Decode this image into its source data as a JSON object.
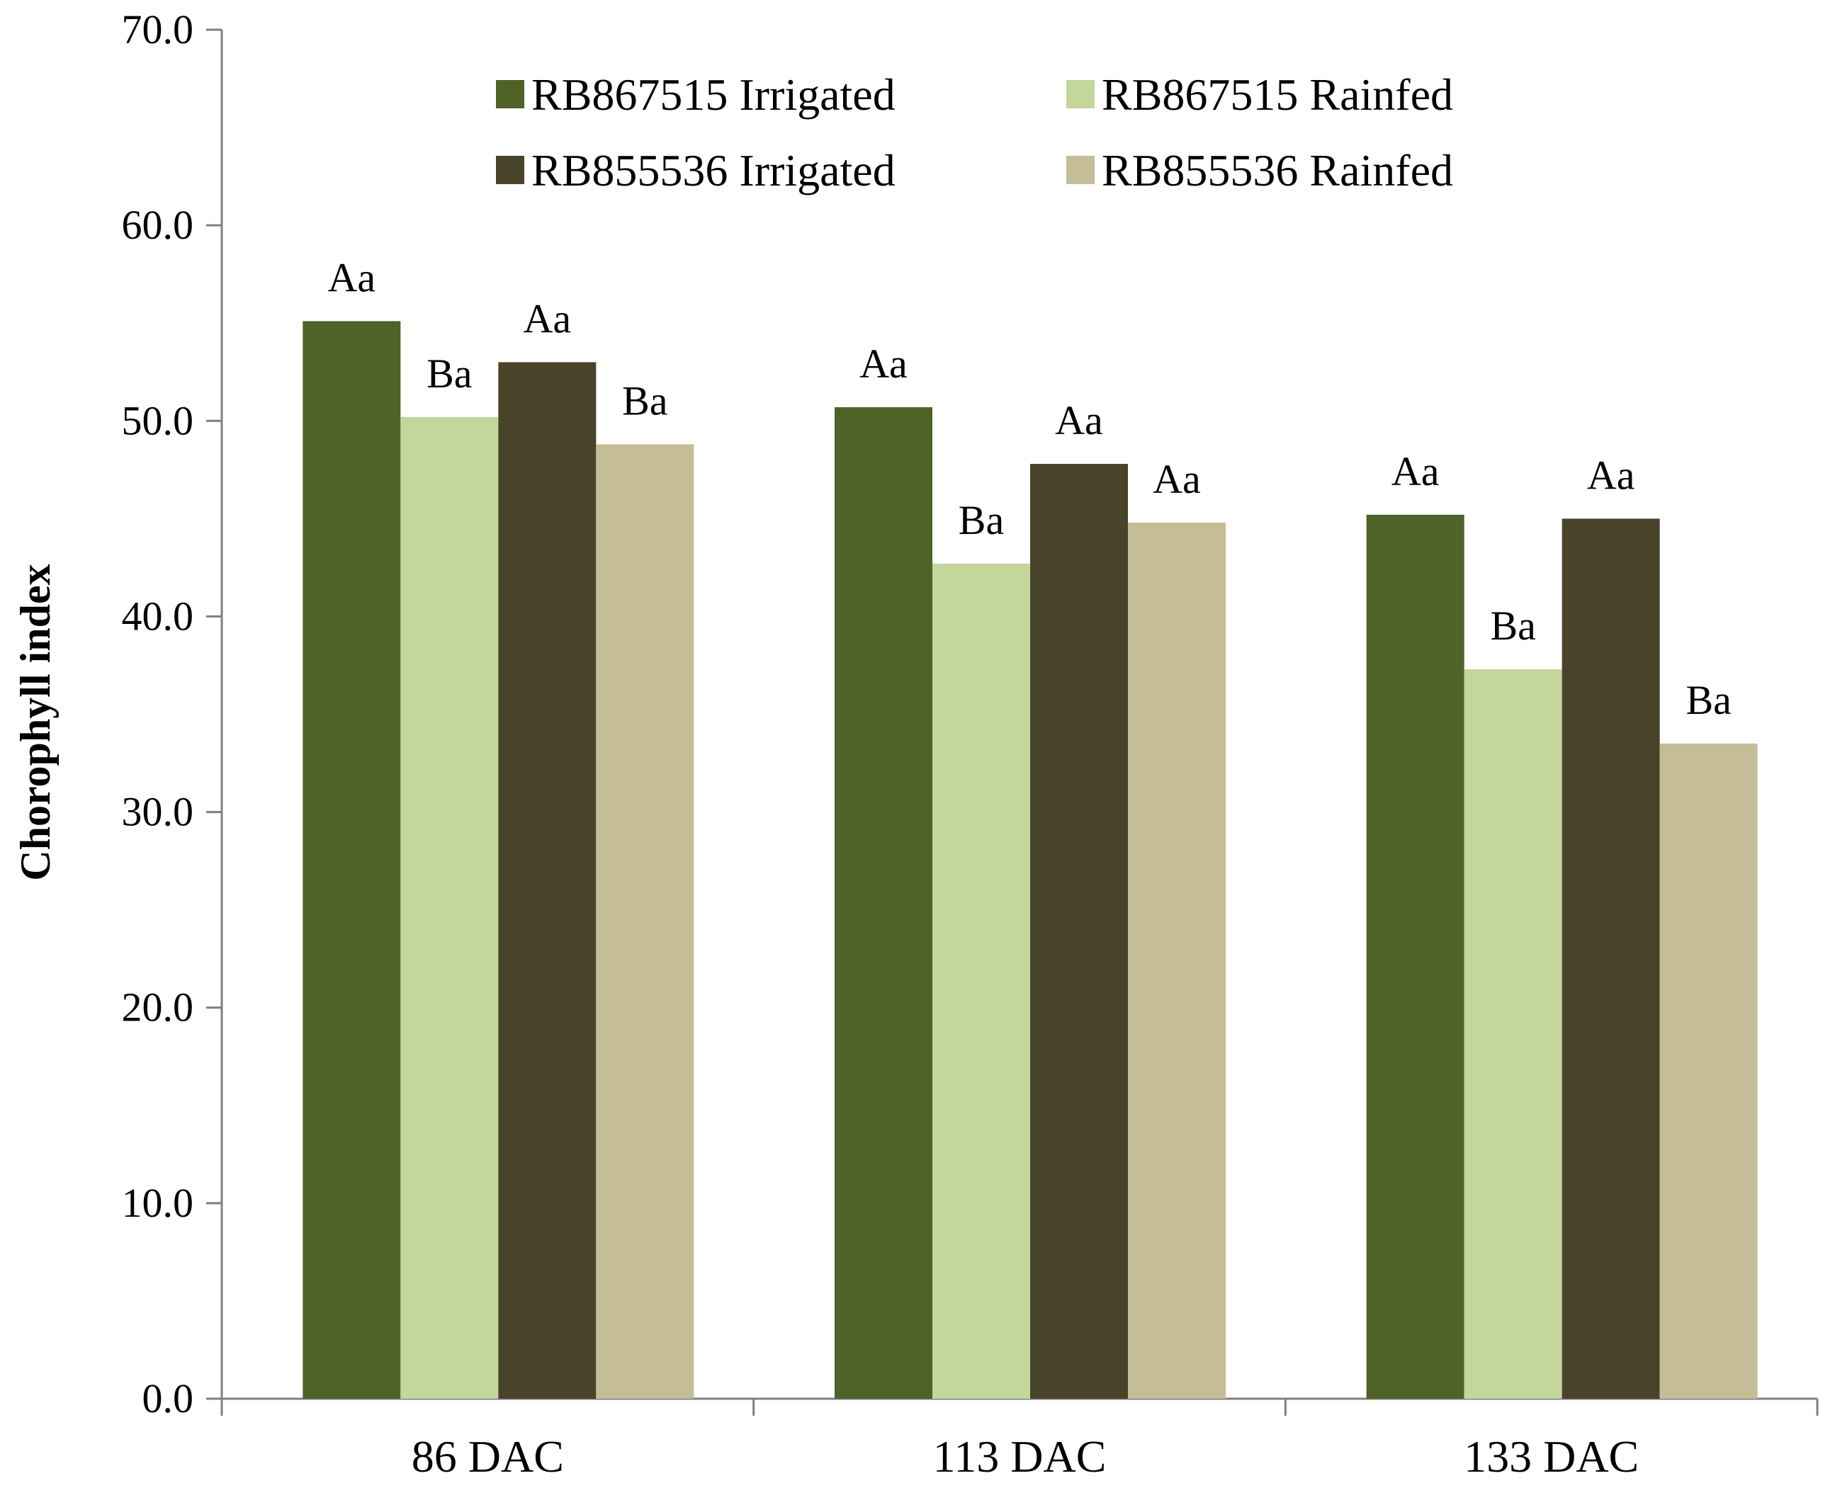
{
  "chart_data": {
    "type": "bar",
    "title": "",
    "xlabel": "",
    "ylabel": "Chorophyll  index",
    "ylim": [
      0,
      70
    ],
    "y_ticks": [
      "0.0",
      "10.0",
      "20.0",
      "30.0",
      "40.0",
      "50.0",
      "60.0",
      "70.0"
    ],
    "y_tick_values": [
      0,
      10,
      20,
      30,
      40,
      50,
      60,
      70
    ],
    "grid": false,
    "legend_position": "top",
    "categories": [
      "86 DAC",
      "113 DAC",
      "133 DAC"
    ],
    "series": [
      {
        "name": "RB867515 Irrigated",
        "color": "#4f6228",
        "values": [
          55.1,
          50.7,
          45.2
        ],
        "labels": [
          "Aa",
          "Aa",
          "Aa"
        ]
      },
      {
        "name": "RB867515 Rainfed",
        "color": "#c3d69b",
        "values": [
          50.2,
          42.7,
          37.3
        ],
        "labels": [
          "Ba",
          "Ba",
          "Ba"
        ]
      },
      {
        "name": "RB855536 Irrigated",
        "color": "#49432a",
        "values": [
          53.0,
          47.8,
          45.0
        ],
        "labels": [
          "Aa",
          "Aa",
          "Aa"
        ]
      },
      {
        "name": "RB855536 Rainfed",
        "color": "#c4bd97",
        "values": [
          48.8,
          44.8,
          33.5
        ],
        "labels": [
          "Ba",
          "Aa",
          "Ba"
        ]
      }
    ]
  }
}
